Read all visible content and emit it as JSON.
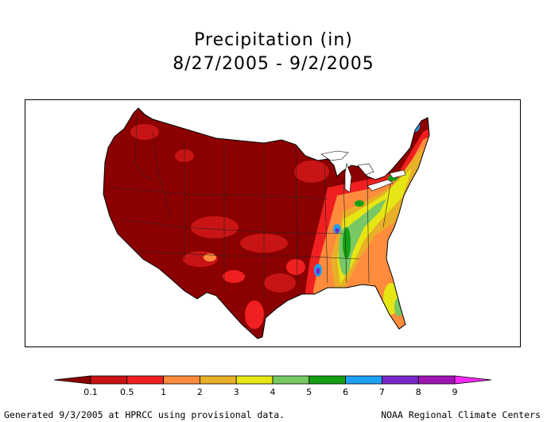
{
  "title": {
    "line1": "Precipitation (in)",
    "line2": "8/27/2005 - 9/2/2005"
  },
  "legend": {
    "colors": [
      "#8b0000",
      "#c81414",
      "#f02020",
      "#ff8c3c",
      "#e8b028",
      "#e6e614",
      "#78c864",
      "#14a014",
      "#1ea0f0",
      "#7828c8",
      "#a014b4",
      "#ff28ff"
    ],
    "ticks": [
      "0.1",
      "0.5",
      "1",
      "2",
      "3",
      "4",
      "5",
      "6",
      "7",
      "8",
      "9"
    ]
  },
  "footer": {
    "left": "Generated 9/3/2005 at HPRCC using provisional data.",
    "right": "NOAA Regional Climate Centers"
  }
}
